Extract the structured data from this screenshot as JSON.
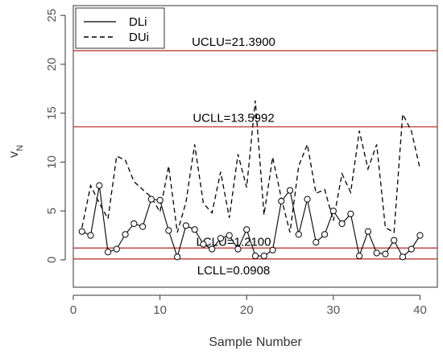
{
  "chart_data": {
    "type": "line",
    "xlabel": "Sample Number",
    "ylabel": "v_N",
    "xlim": [
      0,
      42
    ],
    "ylim": [
      -2.8,
      26
    ],
    "xticks": [
      "0",
      "10",
      "20",
      "30",
      "40"
    ],
    "yticks": [
      "0",
      "5",
      "10",
      "15",
      "20",
      "25"
    ],
    "x": [
      1,
      2,
      3,
      4,
      5,
      6,
      7,
      8,
      9,
      10,
      11,
      12,
      13,
      14,
      15,
      16,
      17,
      18,
      19,
      20,
      21,
      22,
      23,
      24,
      25,
      26,
      27,
      28,
      29,
      30,
      31,
      32,
      33,
      34,
      35,
      36,
      37,
      38,
      39,
      40
    ],
    "series": [
      {
        "name": "DLi",
        "line_style": "solid",
        "markers": "open-circle",
        "values": [
          2.9,
          2.5,
          7.6,
          0.8,
          1.1,
          2.6,
          3.7,
          3.4,
          6.2,
          6.1,
          3.0,
          0.3,
          3.5,
          3.1,
          1.6,
          1.1,
          2.2,
          2.5,
          1.1,
          3.1,
          0.4,
          0.4,
          1.0,
          6.0,
          7.1,
          2.6,
          6.2,
          1.8,
          2.6,
          5.0,
          3.7,
          4.7,
          0.4,
          2.9,
          0.7,
          0.6,
          2.0,
          0.3,
          1.1,
          2.5
        ]
      },
      {
        "name": "DUi",
        "line_style": "dashed",
        "markers": "none",
        "values": [
          3.3,
          7.6,
          5.8,
          4.2,
          10.6,
          10.2,
          8.0,
          7.2,
          6.4,
          4.9,
          9.6,
          2.8,
          5.9,
          11.8,
          5.8,
          4.8,
          9.0,
          4.3,
          10.8,
          7.4,
          16.3,
          4.6,
          10.5,
          6.3,
          2.8,
          9.6,
          11.8,
          6.8,
          7.2,
          4.0,
          8.8,
          6.9,
          13.2,
          9.3,
          11.8,
          3.3,
          2.8,
          14.9,
          13.2,
          9.3
        ]
      }
    ],
    "reference_lines": [
      {
        "label": "UCLU=21.3900",
        "value": 21.39,
        "color": "#b8241c"
      },
      {
        "label": "UCLL=13.5992",
        "value": 13.5992,
        "color": "#b8241c"
      },
      {
        "label": "LCLU=1.2100",
        "value": 1.21,
        "color": "#b8241c"
      },
      {
        "label": "LCLL=0.0908",
        "value": 0.0908,
        "color": "#b8241c"
      }
    ],
    "legend": {
      "placement": "top-left",
      "entries": [
        "DLi",
        "DUi"
      ]
    },
    "grid": false
  }
}
